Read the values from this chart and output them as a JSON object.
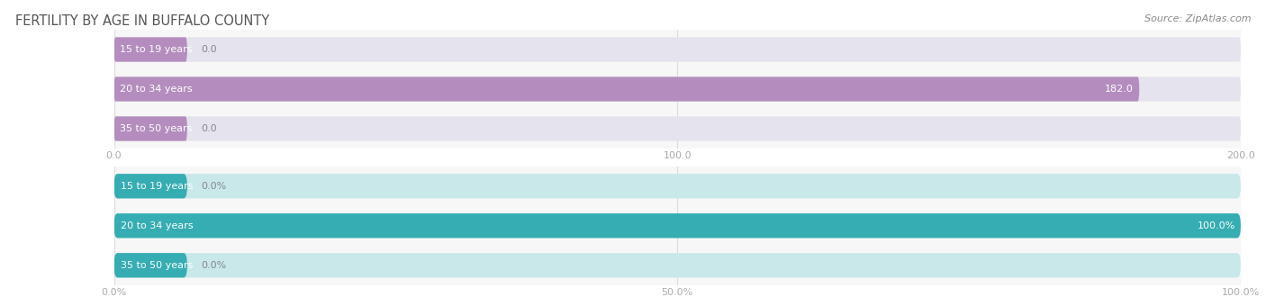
{
  "title": "FERTILITY BY AGE IN BUFFALO COUNTY",
  "source": "Source: ZipAtlas.com",
  "top_chart": {
    "categories": [
      "15 to 19 years",
      "20 to 34 years",
      "35 to 50 years"
    ],
    "values": [
      0.0,
      182.0,
      0.0
    ],
    "xlim": [
      0,
      200
    ],
    "xticks": [
      0.0,
      100.0,
      200.0
    ],
    "xtick_labels": [
      "0.0",
      "100.0",
      "200.0"
    ],
    "bar_color": "#b48dbe",
    "bar_bg_color": "#e5e3ed",
    "value_labels": [
      "0.0",
      "182.0",
      "0.0"
    ]
  },
  "bottom_chart": {
    "categories": [
      "15 to 19 years",
      "20 to 34 years",
      "35 to 50 years"
    ],
    "values": [
      0.0,
      100.0,
      0.0
    ],
    "xlim": [
      0,
      100
    ],
    "xticks": [
      0.0,
      50.0,
      100.0
    ],
    "xtick_labels": [
      "0.0%",
      "50.0%",
      "100.0%"
    ],
    "bar_color": "#35adb2",
    "bar_bg_color": "#c8e8ea",
    "value_labels": [
      "0.0%",
      "100.0%",
      "0.0%"
    ]
  },
  "title_color": "#555555",
  "title_fontsize": 10.5,
  "source_fontsize": 8,
  "tick_fontsize": 8,
  "cat_fontsize": 8
}
